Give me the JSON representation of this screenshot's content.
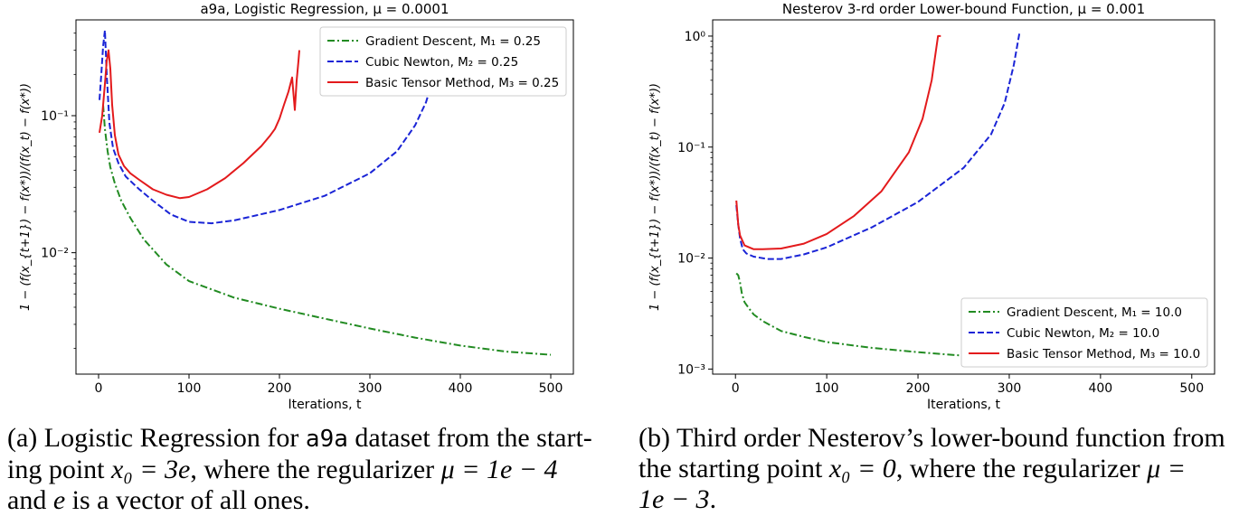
{
  "chart_data": [
    {
      "type": "line",
      "title": "a9a, Logistic Regression, μ = 0.0001",
      "xlabel": "Iterations, t",
      "ylabel": "1 − (f(x_{t+1}) − f(x*))/(f(x_t) − f(x*))",
      "yscale": "log",
      "xlim": [
        -25,
        525
      ],
      "ylim": [
        0.0013,
        0.5
      ],
      "xticks": [
        0,
        100,
        200,
        300,
        400,
        500
      ],
      "xtick_labels": [
        "0",
        "100",
        "200",
        "300",
        "400",
        "500"
      ],
      "yticks": [
        0.01,
        0.1
      ],
      "ytick_labels": [
        "10⁻²",
        "10⁻¹"
      ],
      "legend_position": "top-right",
      "series": [
        {
          "name": "Gradient Descent, M₁ = 0.25",
          "color": "#228b22",
          "style": "dashdot",
          "x": [
            5,
            7,
            10,
            13,
            18,
            25,
            35,
            50,
            75,
            100,
            150,
            200,
            250,
            300,
            350,
            400,
            450,
            500
          ],
          "y": [
            0.12,
            0.08,
            0.055,
            0.042,
            0.032,
            0.024,
            0.018,
            0.0125,
            0.0082,
            0.0062,
            0.0047,
            0.0039,
            0.0033,
            0.0028,
            0.0024,
            0.0021,
            0.0019,
            0.0018
          ]
        },
        {
          "name": "Cubic Newton, M₂ = 0.25",
          "color": "#1a24d6",
          "style": "dashed",
          "x": [
            1,
            3,
            5,
            7,
            9,
            12,
            16,
            22,
            30,
            45,
            60,
            80,
            100,
            125,
            150,
            200,
            250,
            300,
            330,
            350,
            362,
            367
          ],
          "y": [
            0.13,
            0.2,
            0.32,
            0.42,
            0.2,
            0.088,
            0.058,
            0.045,
            0.036,
            0.029,
            0.024,
            0.019,
            0.0168,
            0.0164,
            0.0172,
            0.0205,
            0.026,
            0.038,
            0.055,
            0.085,
            0.125,
            0.16
          ]
        },
        {
          "name": "Basic Tensor Method, M₃ = 0.25",
          "color": "#e31a1c",
          "style": "solid",
          "x": [
            1,
            4,
            7,
            9,
            11,
            13,
            15,
            18,
            22,
            28,
            35,
            45,
            60,
            75,
            90,
            100,
            120,
            140,
            160,
            180,
            190,
            195,
            200,
            205,
            210,
            214,
            217,
            219,
            221,
            222
          ],
          "y": [
            0.075,
            0.1,
            0.17,
            0.25,
            0.3,
            0.22,
            0.12,
            0.072,
            0.052,
            0.043,
            0.038,
            0.034,
            0.029,
            0.0265,
            0.025,
            0.0255,
            0.029,
            0.035,
            0.045,
            0.06,
            0.072,
            0.08,
            0.095,
            0.12,
            0.15,
            0.19,
            0.11,
            0.18,
            0.25,
            0.3
          ]
        }
      ]
    },
    {
      "type": "line",
      "title": "Nesterov 3-rd order Lower-bound Function, μ = 0.001",
      "xlabel": "Iterations, t",
      "ylabel": "1 − (f(x_{t+1}) − f(x*))/(f(x_t) − f(x*))",
      "yscale": "log",
      "xlim": [
        -25,
        525
      ],
      "ylim": [
        0.0009,
        1.4
      ],
      "xticks": [
        0,
        100,
        200,
        300,
        400,
        500
      ],
      "xtick_labels": [
        "0",
        "100",
        "200",
        "300",
        "400",
        "500"
      ],
      "yticks": [
        0.001,
        0.01,
        0.1,
        1
      ],
      "ytick_labels": [
        "10⁻³",
        "10⁻²",
        "10⁻¹",
        "10⁰"
      ],
      "legend_position": "bottom-right",
      "series": [
        {
          "name": "Gradient Descent, M₁ = 10.0",
          "color": "#228b22",
          "style": "dashdot",
          "x": [
            1,
            3,
            5,
            7,
            10,
            15,
            20,
            30,
            50,
            75,
            100,
            150,
            200,
            250,
            300
          ],
          "y": [
            0.0073,
            0.007,
            0.006,
            0.0048,
            0.004,
            0.0035,
            0.0031,
            0.0027,
            0.0022,
            0.00195,
            0.00175,
            0.00155,
            0.00142,
            0.00132,
            0.00125
          ]
        },
        {
          "name": "Cubic Newton, M₂ = 10.0",
          "color": "#1a24d6",
          "style": "dashed",
          "x": [
            1,
            3,
            5,
            8,
            12,
            20,
            35,
            50,
            75,
            100,
            150,
            200,
            250,
            280,
            295,
            305,
            311
          ],
          "y": [
            0.03,
            0.02,
            0.015,
            0.012,
            0.011,
            0.0103,
            0.0098,
            0.0098,
            0.0108,
            0.0125,
            0.019,
            0.032,
            0.065,
            0.13,
            0.25,
            0.55,
            1.05
          ]
        },
        {
          "name": "Basic Tensor Method, M₃ = 10.0",
          "color": "#e31a1c",
          "style": "solid",
          "x": [
            1,
            3,
            5,
            10,
            20,
            30,
            50,
            75,
            100,
            130,
            160,
            190,
            205,
            215,
            222,
            225
          ],
          "y": [
            0.033,
            0.02,
            0.016,
            0.013,
            0.012,
            0.012,
            0.0122,
            0.0135,
            0.0165,
            0.024,
            0.04,
            0.09,
            0.18,
            0.4,
            1.0,
            1.0
          ]
        }
      ]
    }
  ],
  "captions": {
    "a": {
      "l1": "(a) Logistic Regression for ",
      "dataset": "a9a",
      "l1b": " dataset from the start-",
      "l2": "ing point ",
      "l2math": "x₀ = 3e",
      "l2b": ", where the regularizer ",
      "l2math2": "μ = 1e − 4",
      "l3": "and ",
      "l3math": "e",
      "l3b": " is a vector of all ones."
    },
    "b": {
      "l1": "(b) Third order Nesterov’s lower-bound function from",
      "l2": "the starting point ",
      "l2math": "x₀ = 0",
      "l2b": ", where the regularizer ",
      "l2math2": "μ =",
      "l3math": "1e − 3",
      "l3b": "."
    }
  }
}
